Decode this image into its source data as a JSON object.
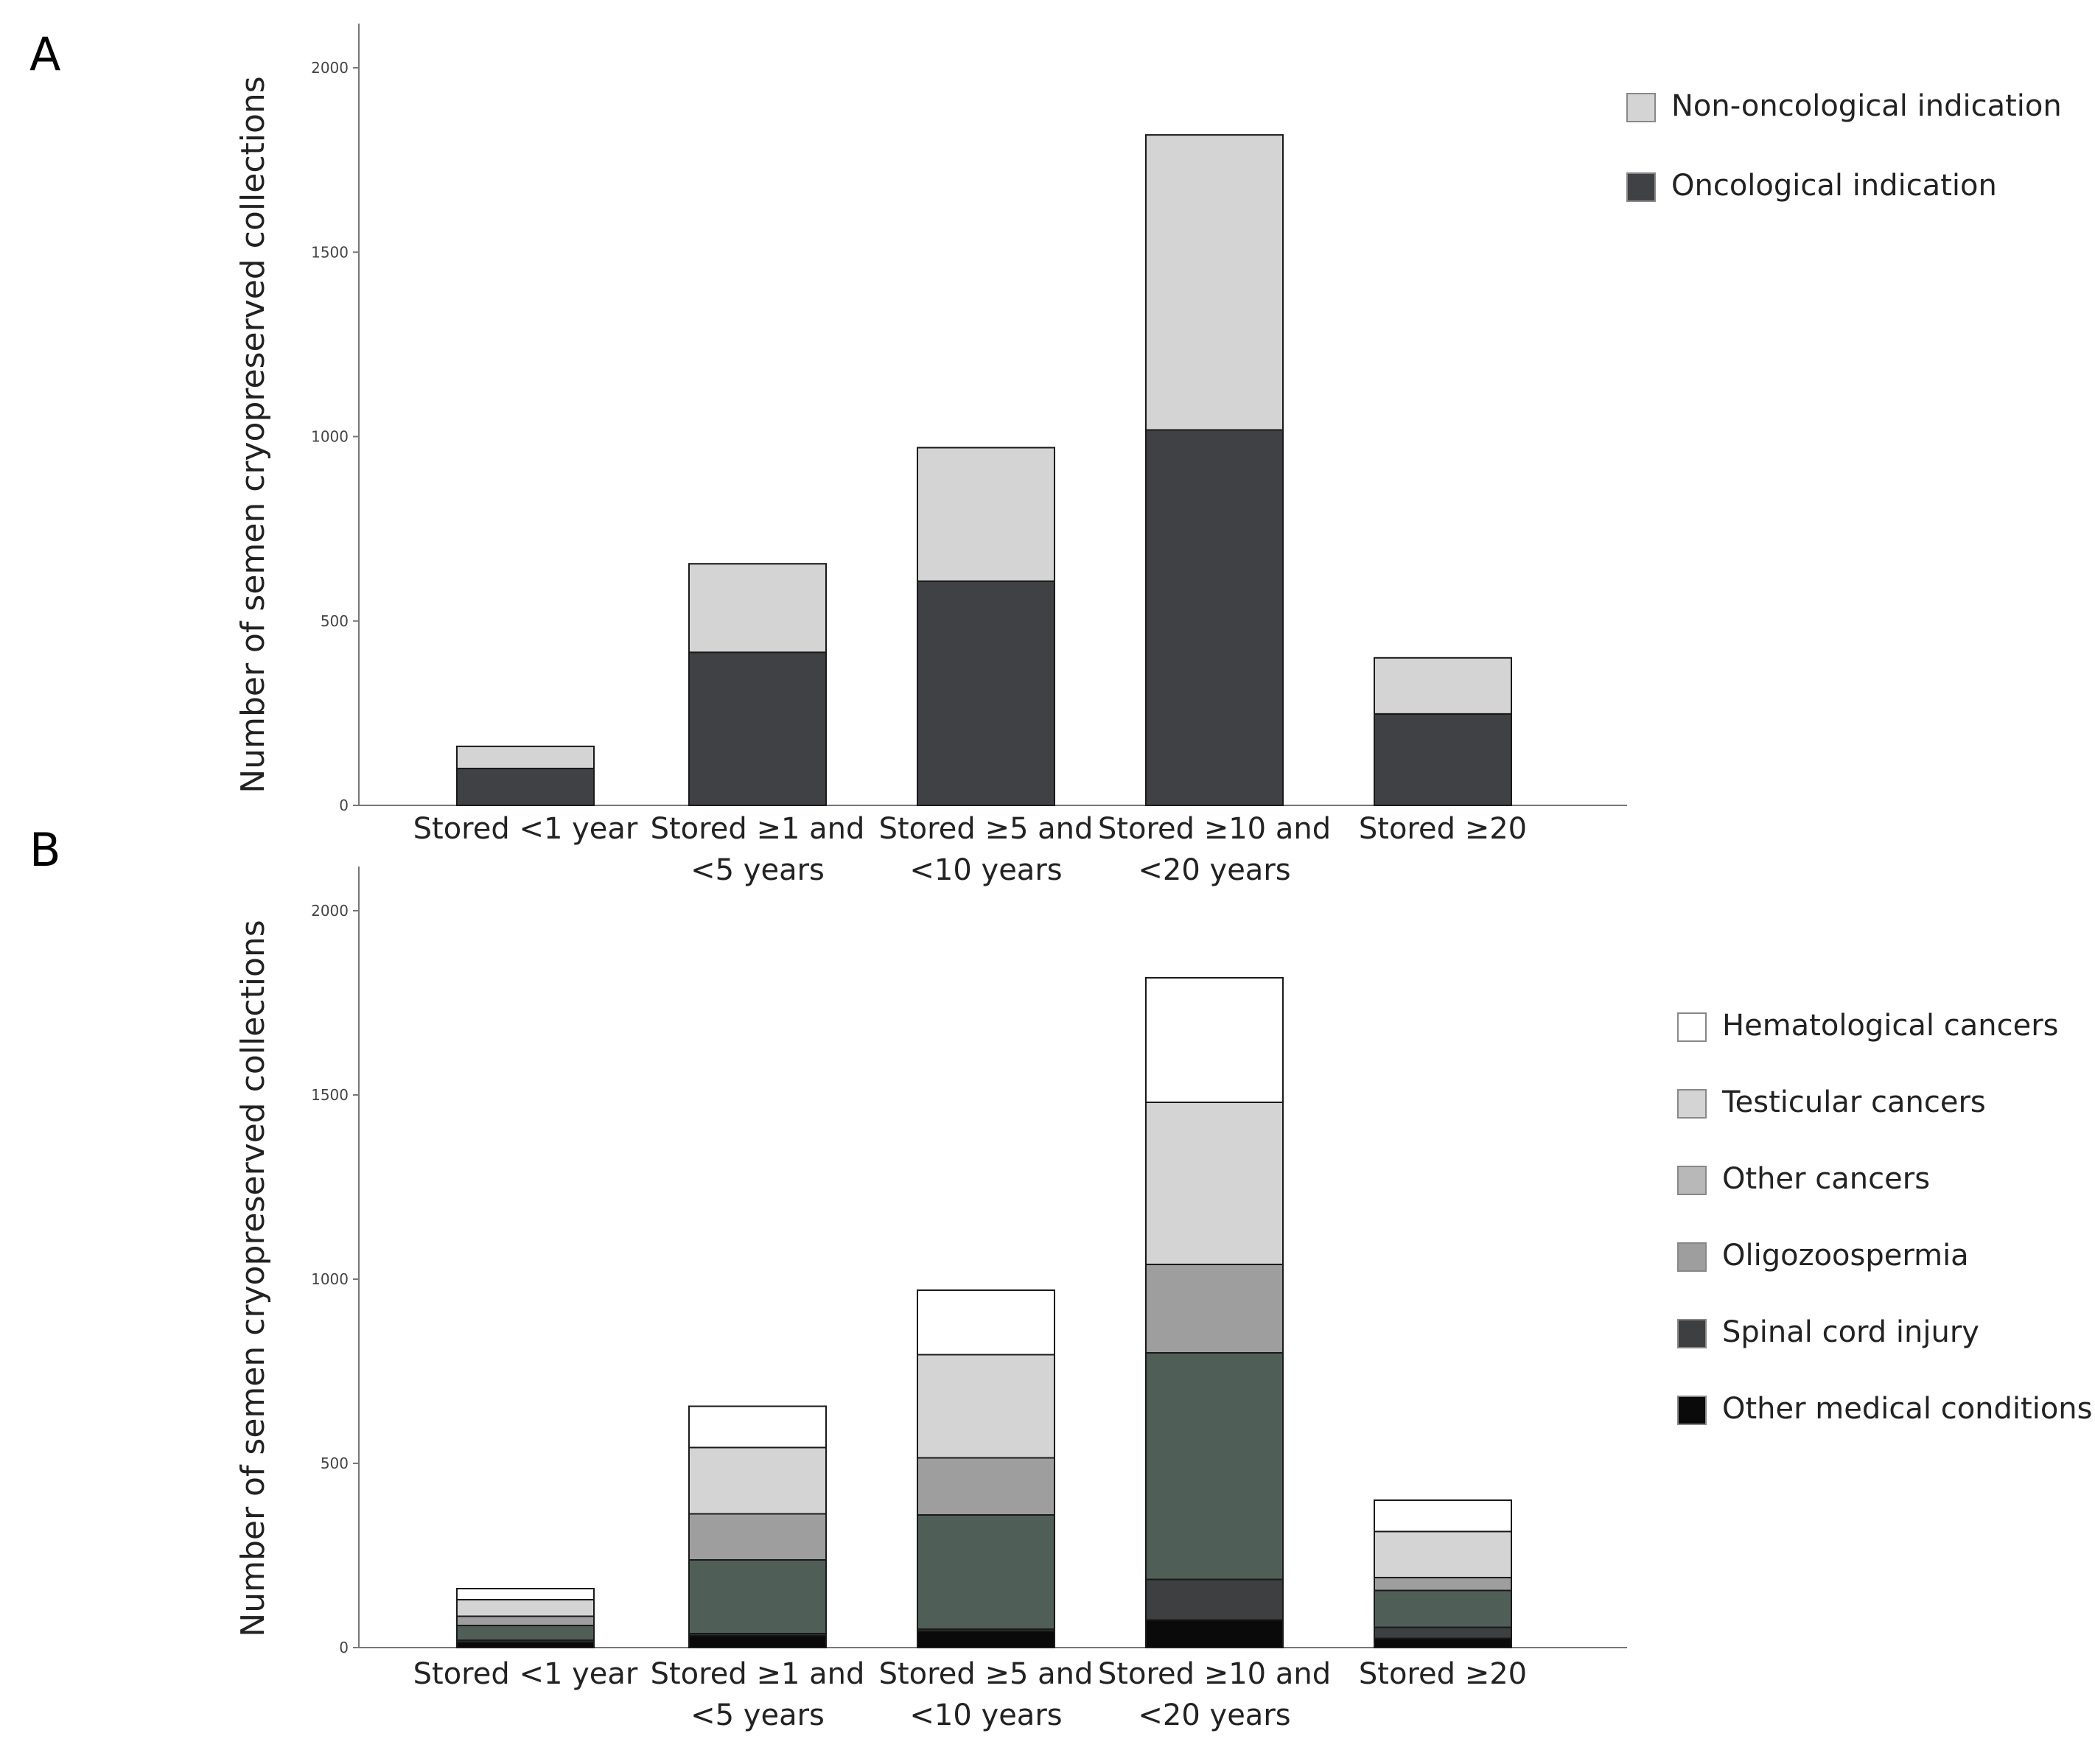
{
  "chart_data": [
    {
      "type": "bar",
      "stacked": true,
      "panel_label": "A",
      "title": "",
      "xlabel": "",
      "ylabel": "Number of semen cryopreserved collections",
      "ylim": [
        0,
        2000
      ],
      "yticks": [
        0,
        500,
        1000,
        1500,
        2000
      ],
      "grid": false,
      "legend_position": "top-right",
      "categories": [
        [
          "Stored <1 year"
        ],
        [
          "Stored ≥1 and",
          "<5 years"
        ],
        [
          "Stored ≥5 and",
          "<10 years"
        ],
        [
          "Stored ≥10 and",
          "<20 years"
        ],
        [
          "Stored ≥20"
        ]
      ],
      "series": [
        {
          "name": "Oncological indication",
          "color": "#3f4144",
          "values": [
            100,
            415,
            608,
            1018,
            248
          ]
        },
        {
          "name": "Non-oncological indication",
          "color": "#d4d4d4",
          "values": [
            60,
            240,
            362,
            800,
            152
          ]
        }
      ],
      "legend_order": [
        1,
        0
      ]
    },
    {
      "type": "bar",
      "stacked": true,
      "panel_label": "B",
      "title": "",
      "xlabel": "",
      "ylabel": "Number of semen cryopreserved collections",
      "ylim": [
        0,
        2000
      ],
      "yticks": [
        0,
        500,
        1000,
        1500,
        2000
      ],
      "grid": false,
      "legend_position": "right",
      "categories": [
        [
          "Stored <1 year"
        ],
        [
          "Stored ≥1 and",
          "<5 years"
        ],
        [
          "Stored ≥5 and",
          "<10 years"
        ],
        [
          "Stored ≥10 and",
          "<20 years"
        ],
        [
          "Stored ≥20"
        ]
      ],
      "series": [
        {
          "name": "Other medical conditions",
          "color": "#0a0a0a",
          "values": [
            15,
            33,
            45,
            75,
            25
          ]
        },
        {
          "name": "Spinal cord injury",
          "color": "#3d3f40",
          "values": [
            5,
            5,
            5,
            110,
            30
          ]
        },
        {
          "name": "",
          "color": "#4f5f58",
          "values": [
            40,
            200,
            310,
            615,
            100
          ]
        },
        {
          "name": "Oligozoospermia",
          "color": "#9e9e9e",
          "values": [
            25,
            125,
            155,
            240,
            35
          ]
        },
        {
          "name": "Other cancers",
          "color": "#b8b8b8",
          "values": [
            0,
            0,
            0,
            0,
            0
          ]
        },
        {
          "name": "Testicular cancers",
          "color": "#d4d4d4",
          "values": [
            45,
            180,
            280,
            440,
            125
          ]
        },
        {
          "name": "Hematological cancers",
          "color": "#ffffff",
          "values": [
            30,
            112,
            175,
            338,
            85
          ]
        }
      ],
      "legend_order": [
        6,
        5,
        4,
        3,
        1,
        0
      ]
    }
  ]
}
